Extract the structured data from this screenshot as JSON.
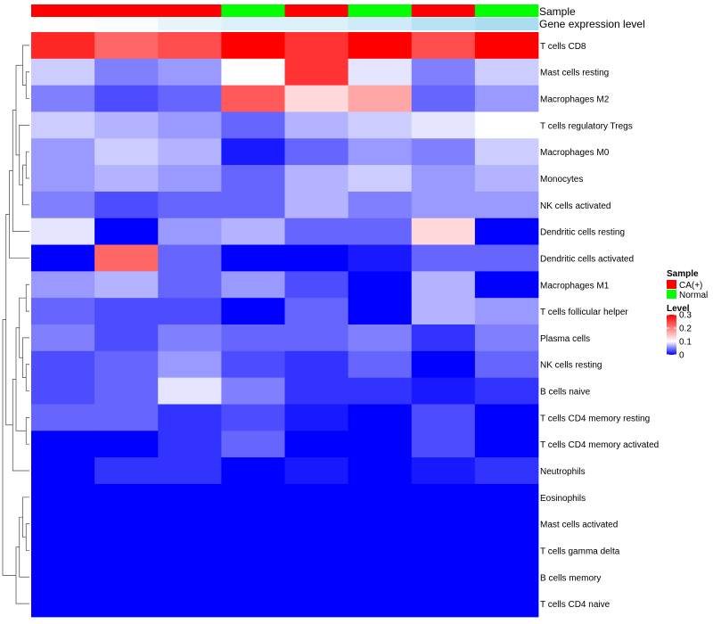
{
  "chart_data": {
    "type": "heatmap",
    "annotation_tracks": [
      "Sample",
      "Gene expression level"
    ],
    "column_samples": [
      "CA(+)",
      "CA(+)",
      "CA(+)",
      "Normal",
      "CA(+)",
      "Normal",
      "CA(+)",
      "Normal"
    ],
    "column_expression": [
      0.0,
      0.05,
      0.2,
      0.3,
      0.3,
      0.4,
      0.6,
      0.7
    ],
    "rows": [
      "T cells CD8",
      "Mast cells resting",
      "Macrophages M2",
      "T cells regulatory  Tregs",
      "Macrophages M0",
      "Monocytes",
      "NK cells activated",
      "Dendritic cells resting",
      "Dendritic cells activated",
      "Macrophages M1",
      "T cells follicular helper",
      "Plasma cells",
      "NK cells resting",
      "B cells naive",
      "T cells CD4 memory resting",
      "T cells CD4 memory activated",
      "Neutrophils",
      "Eosinophils",
      "Mast cells activated",
      "T cells gamma delta",
      "B cells memory",
      "T cells CD4 naive"
    ],
    "values": [
      [
        0.27,
        0.22,
        0.24,
        0.3,
        0.26,
        0.3,
        0.24,
        0.3
      ],
      [
        0.08,
        0.05,
        0.06,
        0.1,
        0.26,
        0.09,
        0.05,
        0.08
      ],
      [
        0.05,
        0.03,
        0.04,
        0.23,
        0.13,
        0.17,
        0.04,
        0.06
      ],
      [
        0.08,
        0.07,
        0.06,
        0.04,
        0.07,
        0.08,
        0.09,
        0.1
      ],
      [
        0.06,
        0.08,
        0.07,
        0.01,
        0.04,
        0.06,
        0.05,
        0.08
      ],
      [
        0.06,
        0.07,
        0.06,
        0.04,
        0.07,
        0.08,
        0.06,
        0.07
      ],
      [
        0.05,
        0.03,
        0.04,
        0.04,
        0.07,
        0.05,
        0.06,
        0.06
      ],
      [
        0.09,
        0.0,
        0.06,
        0.07,
        0.04,
        0.04,
        0.13,
        0.0
      ],
      [
        0.0,
        0.22,
        0.04,
        0.0,
        0.0,
        0.01,
        0.04,
        0.04
      ],
      [
        0.06,
        0.07,
        0.04,
        0.06,
        0.03,
        0.0,
        0.07,
        0.0
      ],
      [
        0.04,
        0.03,
        0.03,
        0.0,
        0.04,
        0.0,
        0.07,
        0.06
      ],
      [
        0.05,
        0.03,
        0.05,
        0.04,
        0.04,
        0.05,
        0.02,
        0.05
      ],
      [
        0.03,
        0.04,
        0.06,
        0.03,
        0.02,
        0.04,
        0.0,
        0.04
      ],
      [
        0.03,
        0.04,
        0.09,
        0.05,
        0.02,
        0.02,
        0.01,
        0.02
      ],
      [
        0.04,
        0.04,
        0.02,
        0.03,
        0.01,
        0.0,
        0.03,
        0.0
      ],
      [
        0.0,
        0.0,
        0.02,
        0.04,
        0.0,
        0.0,
        0.03,
        0.0
      ],
      [
        0.0,
        0.02,
        0.02,
        0.0,
        0.01,
        0.0,
        0.01,
        0.02
      ],
      [
        0.0,
        0.0,
        0.0,
        0.0,
        0.0,
        0.0,
        0.0,
        0.0
      ],
      [
        0.0,
        0.0,
        0.0,
        0.0,
        0.0,
        0.0,
        0.0,
        0.0
      ],
      [
        0.0,
        0.0,
        0.0,
        0.0,
        0.0,
        0.0,
        0.0,
        0.0
      ],
      [
        0.0,
        0.0,
        0.0,
        0.0,
        0.0,
        0.0,
        0.0,
        0.0
      ],
      [
        0.0,
        0.0,
        0.0,
        0.0,
        0.0,
        0.0,
        0.0,
        0.0
      ]
    ],
    "color_scale": {
      "min": 0,
      "mid": 0.1,
      "max": 0.3,
      "low": "#0000ff",
      "midColor": "#ffffff",
      "high": "#ff0000"
    },
    "legend": {
      "sample_title": "Sample",
      "sample_entries": [
        {
          "label": "CA(+)",
          "color": "#ff0000"
        },
        {
          "label": "Normal",
          "color": "#00ff00"
        }
      ],
      "level_title": "Level",
      "level_ticks": [
        {
          "value": 0.3,
          "label": "0.3"
        },
        {
          "value": 0.2,
          "label": "0.2"
        },
        {
          "value": 0.1,
          "label": "0.1"
        },
        {
          "value": 0,
          "label": "0"
        }
      ]
    },
    "expression_scale": {
      "low": "#ffffff",
      "high": "#87ceeb"
    },
    "dendrogram": "rows-left",
    "legend_position": "right"
  }
}
